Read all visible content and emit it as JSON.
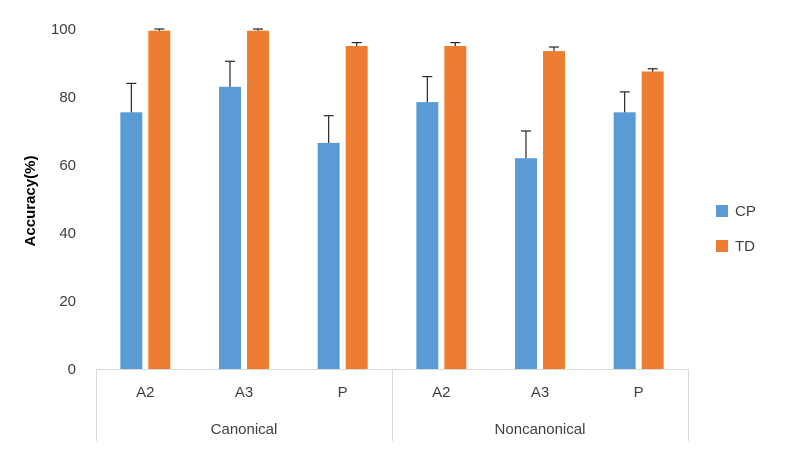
{
  "chart_data": {
    "type": "bar",
    "ylabel": "Accuracy(%)",
    "xlabel": "",
    "title": "",
    "ylim": [
      0,
      100
    ],
    "yticks": [
      "0",
      "20",
      "40",
      "60",
      "80",
      "100"
    ],
    "grid": false,
    "legend_position": "right",
    "categories": [
      "A2",
      "A3",
      "P",
      "A2",
      "A3",
      "P"
    ],
    "groups": [
      {
        "label": "Canonical",
        "categories": [
          "A2",
          "A3",
          "P"
        ]
      },
      {
        "label": "Noncanonical",
        "categories": [
          "A2",
          "A3",
          "P"
        ]
      }
    ],
    "series": [
      {
        "name": "CP",
        "color": "#5B9BD5",
        "values": [
          75.5,
          83,
          66.5,
          78.5,
          62,
          75.5
        ],
        "errors": [
          8.5,
          7.5,
          8,
          7.5,
          8,
          6
        ]
      },
      {
        "name": "TD",
        "color": "#ED7D31",
        "values": [
          99.5,
          99.5,
          95,
          95,
          93.5,
          87.5
        ],
        "errors": [
          0.5,
          0.5,
          1,
          1,
          1.2,
          0.8
        ]
      }
    ]
  }
}
